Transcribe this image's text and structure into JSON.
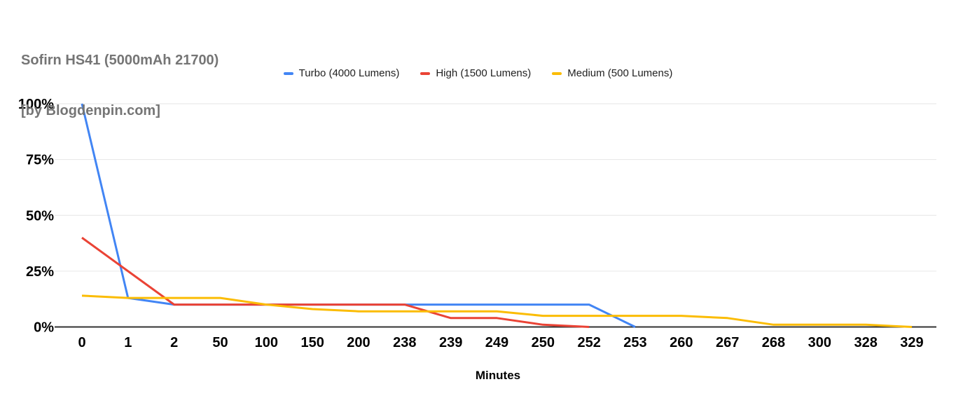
{
  "chart": {
    "title": "Sofirn HS41 (5000mAh 21700)",
    "subtitle": "[by Blogdenpin.com]",
    "title_color": "#757575"
  },
  "chart_data": {
    "type": "line",
    "title": "Sofirn HS41 (5000mAh 21700) [by Blogdenpin.com]",
    "categories": [
      "0",
      "1",
      "2",
      "50",
      "100",
      "150",
      "200",
      "238",
      "239",
      "249",
      "250",
      "252",
      "253",
      "260",
      "267",
      "268",
      "300",
      "328",
      "329"
    ],
    "series": [
      {
        "name": "Turbo (4000 Lumens)",
        "color": "#4285F4",
        "values": [
          100,
          13,
          10,
          10,
          10,
          10,
          10,
          10,
          10,
          10,
          10,
          10,
          0,
          null,
          null,
          null,
          null,
          null,
          null
        ]
      },
      {
        "name": "High (1500 Lumens)",
        "color": "#EA4335",
        "values": [
          40,
          25,
          10,
          10,
          10,
          10,
          10,
          10,
          4,
          4,
          1,
          0,
          null,
          null,
          null,
          null,
          null,
          null,
          null
        ]
      },
      {
        "name": "Medium (500 Lumens)",
        "color": "#FBBC04",
        "values": [
          14,
          13,
          13,
          13,
          10,
          8,
          7,
          7,
          7,
          7,
          5,
          5,
          5,
          5,
          4,
          1,
          1,
          1,
          0
        ]
      }
    ],
    "xlabel": "Minutes",
    "ylabel": "",
    "y_ticks": [
      "0%",
      "25%",
      "50%",
      "75%",
      "100%"
    ],
    "y_tick_values": [
      0,
      25,
      50,
      75,
      100
    ],
    "ylim": [
      0,
      100
    ],
    "grid": true,
    "legend_position": "top",
    "grid_color": "#e6e6e6",
    "baseline_color": "#333333"
  }
}
